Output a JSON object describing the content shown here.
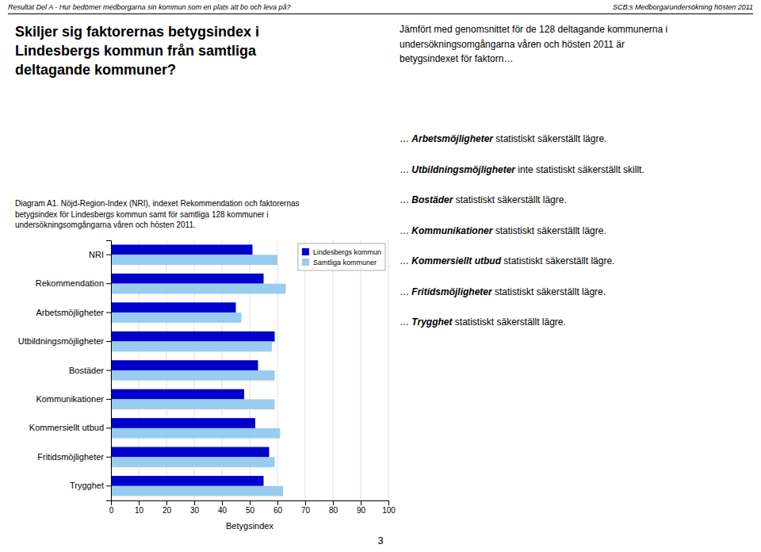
{
  "header_left": "Resultat Del A - Hur bedömer medborgarna sin kommun som en plats att bo och leva på?",
  "header_right": "SCB:s Medborgarundersökning hösten 2011",
  "heading": "Skiljer sig faktorernas betygsindex i\nLindesbergs kommun från samtliga\ndeltagande kommuner?",
  "intro": "Jämfört med genomsnittet för de 128 deltagande kommunerna i\nundersökningsomgångarna våren och hösten 2011 är\nbetygsindexet för faktorn…",
  "item_marker": "…",
  "items": [
    {
      "bold": "Arbetsmöjligheter",
      "normal": " statistiskt säkerställt lägre."
    },
    {
      "bold": "Utbildningsmöjligheter",
      "normal": " inte statistiskt säkerställt skillt."
    },
    {
      "bold": "Bostäder",
      "normal": " statistiskt säkerställt lägre."
    },
    {
      "bold": "Kommunikationer",
      "normal": " statistiskt säkerställt lägre."
    },
    {
      "bold": "Kommersiellt utbud",
      "normal": " statistiskt säkerställt lägre."
    },
    {
      "bold": "Fritidsmöjligheter",
      "normal": " statistiskt säkerställt lägre."
    },
    {
      "bold": "Trygghet",
      "normal": " statistiskt säkerställt lägre."
    }
  ],
  "page_number": "3",
  "chart_data": {
    "type": "bar",
    "orientation": "horizontal",
    "title": "Diagram A1. Nöjd-Region-Index (NRI), indexet Rekommendation och faktorernas\nbetygsindex för Lindesbergs kommun samt för samtliga 128 kommuner i\nundersökningsomgångarna våren och hösten 2011.",
    "categories": [
      "NRI",
      "Rekommendation",
      "Arbetsmöjligheter",
      "Utbildningsmöjligheter",
      "Bostäder",
      "Kommunikationer",
      "Kommersiellt utbud",
      "Fritidsmöjligheter",
      "Trygghet"
    ],
    "series": [
      {
        "name": "Lindesbergs kommun",
        "color": "#0000CC",
        "values": [
          51,
          55,
          45,
          59,
          53,
          48,
          52,
          57,
          55
        ]
      },
      {
        "name": "Samtliga kommuner",
        "color": "#99CCEE",
        "values": [
          60,
          63,
          47,
          58,
          59,
          59,
          61,
          59,
          62
        ]
      }
    ],
    "xlabel": "Betygsindex",
    "xlim": [
      0,
      100
    ],
    "xticks": [
      0,
      10,
      20,
      30,
      40,
      50,
      60,
      70,
      80,
      90,
      100
    ],
    "grid": true,
    "legend": "upper right"
  }
}
